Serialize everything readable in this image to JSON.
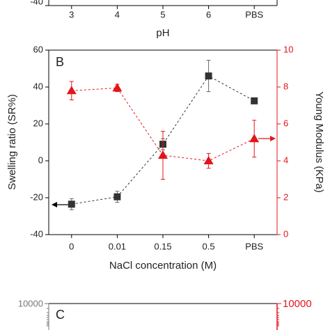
{
  "chart_data": [
    {
      "type": "line",
      "categories": [
        "3",
        "4",
        "5",
        "6",
        "PBS"
      ],
      "x_label": "pH",
      "yticks": [
        -40
      ]
    },
    {
      "type": "line",
      "panel_label": "B",
      "categories": [
        "0",
        "0.01",
        "0.15",
        "0.5",
        "PBS"
      ],
      "x_label": "NaCl concentration (M)",
      "y_label": "Swelling ratio (SR%)",
      "y2_label": "Young Modulus (KPa)",
      "ylim": [
        -40,
        60
      ],
      "yticks": [
        -40,
        -20,
        0,
        20,
        40,
        60
      ],
      "y2lim": [
        0,
        10
      ],
      "y2ticks": [
        0,
        2,
        4,
        6,
        8,
        10
      ],
      "series": [
        {
          "name": "Swelling ratio",
          "color": "#333333",
          "marker": "square",
          "values": [
            -23.5,
            -19.5,
            9,
            46,
            32.5
          ],
          "errors": [
            3,
            3,
            3,
            8.5,
            1.5
          ]
        },
        {
          "name": "Young Modulus",
          "color": "#e3141b",
          "marker": "triangle",
          "axis": "y2",
          "values": [
            7.8,
            7.95,
            4.3,
            4.0,
            5.2
          ],
          "errors": [
            0.5,
            0.2,
            1.3,
            0.4,
            1.0
          ]
        }
      ]
    },
    {
      "type": "line",
      "panel_label": "C",
      "log": true,
      "yticks": [
        10000
      ],
      "y2ticks": [
        10000
      ]
    }
  ]
}
